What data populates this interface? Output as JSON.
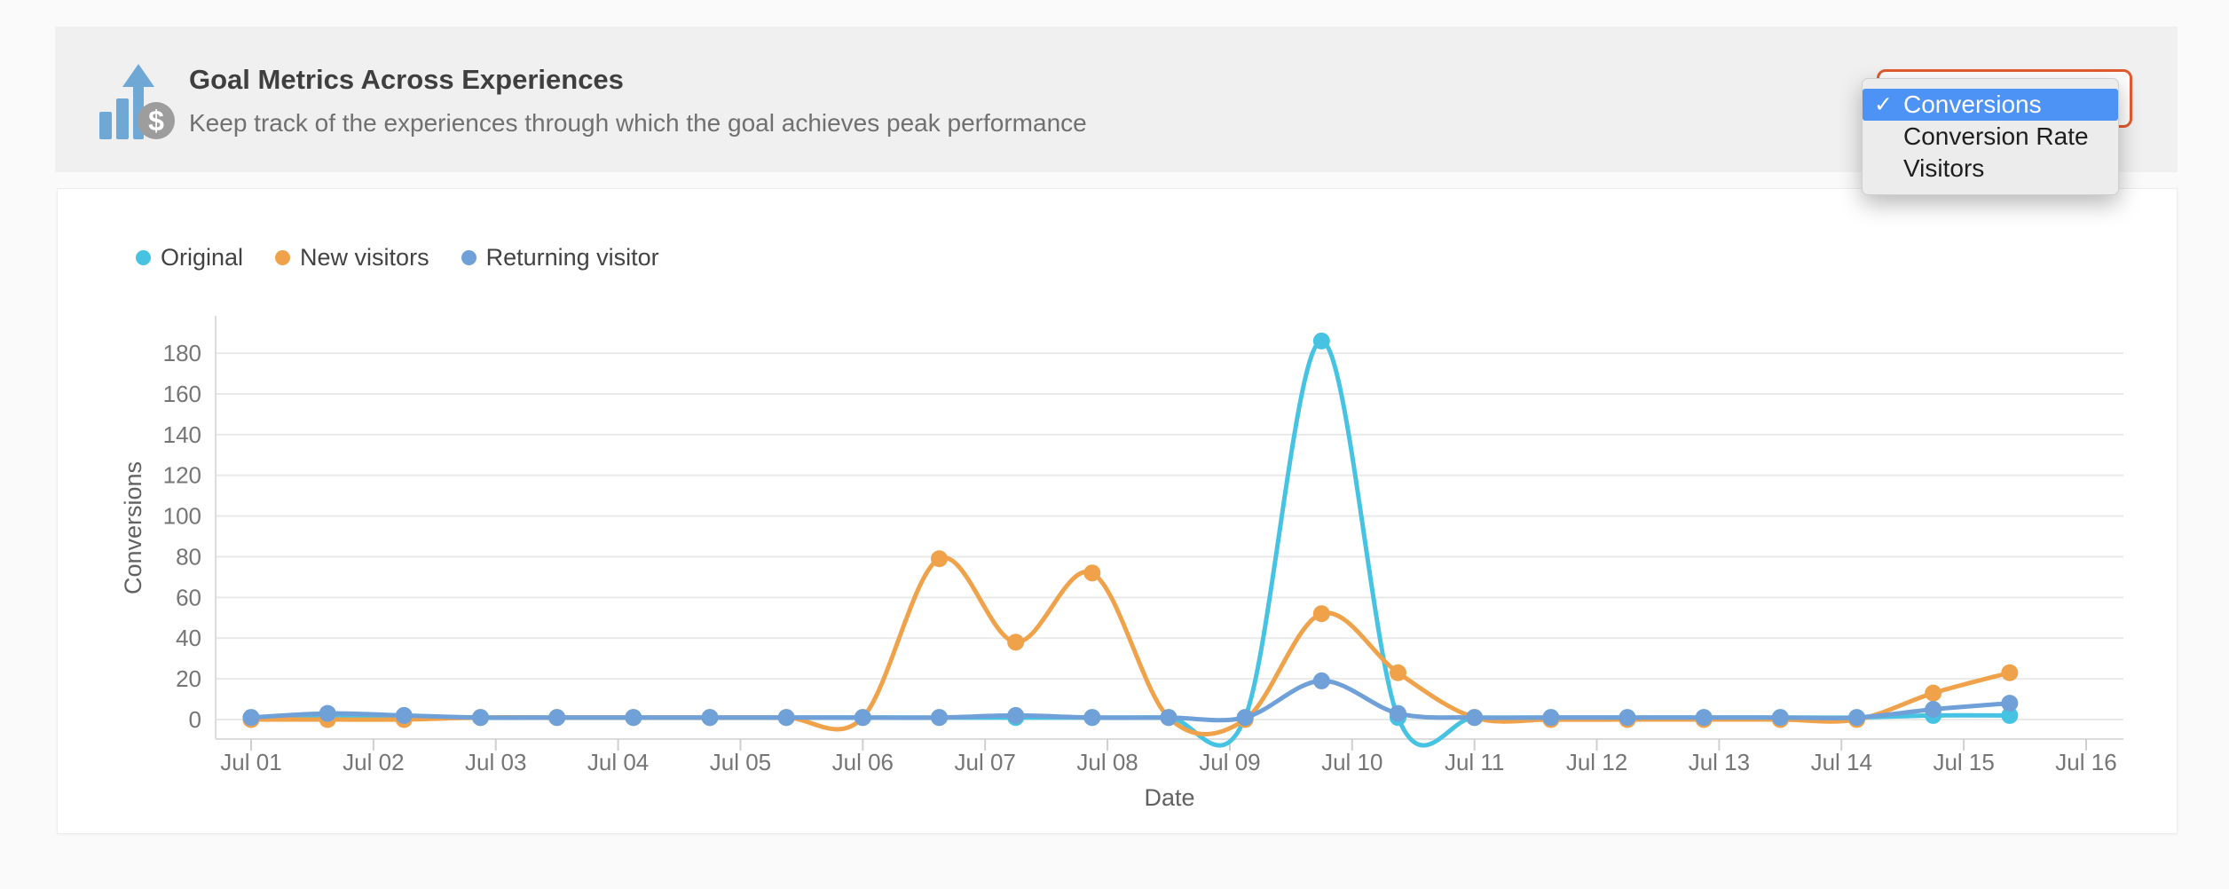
{
  "header": {
    "title": "Goal Metrics Across Experiences",
    "subtitle": "Keep track of the experiences through which the goal achieves peak performance",
    "icon": "bar-chart-up-arrow-dollar-icon",
    "icon_glyph": "$",
    "icon_blue": "#6FA8D4",
    "icon_gray": "#9D9D9D"
  },
  "metric_dropdown": {
    "selected": "Conversions",
    "checkmark": "✓",
    "highlight_color": "#4D92F5",
    "select_border_color": "#E35A2F",
    "options": [
      {
        "label": "Conversions",
        "selected": true
      },
      {
        "label": "Conversion Rate",
        "selected": false
      },
      {
        "label": "Visitors",
        "selected": false
      }
    ]
  },
  "chart_data": {
    "type": "line",
    "title": "",
    "xlabel": "Date",
    "ylabel": "Conversions",
    "grid": true,
    "legend_position": "top-left",
    "ylim": [
      0,
      195
    ],
    "yticks": [
      0,
      20,
      40,
      60,
      80,
      100,
      120,
      140,
      160,
      180
    ],
    "x_tick_labels": [
      "Jul 01",
      "Jul 02",
      "Jul 03",
      "Jul 04",
      "Jul 05",
      "Jul 06",
      "Jul 07",
      "Jul 08",
      "Jul 09",
      "Jul 10",
      "Jul 11",
      "Jul 12",
      "Jul 13",
      "Jul 14",
      "Jul 15",
      "Jul 16"
    ],
    "point_interval_days": 0.625,
    "x_days": [
      0,
      0.625,
      1.25,
      1.875,
      2.5,
      3.125,
      3.75,
      4.375,
      5,
      5.625,
      6.25,
      6.875,
      7.5,
      8.125,
      8.75,
      9.375,
      10,
      10.625,
      11.25,
      11.875,
      12.5,
      13.125,
      13.75,
      14.375
    ],
    "series": [
      {
        "name": "Original",
        "color": "#46C3E2",
        "values": [
          1,
          1,
          1,
          1,
          1,
          1,
          1,
          1,
          1,
          1,
          1,
          1,
          1,
          1,
          186,
          1,
          1,
          1,
          1,
          1,
          1,
          1,
          2,
          2
        ]
      },
      {
        "name": "New visitors",
        "color": "#F0A24B",
        "values": [
          0,
          0,
          0,
          1,
          1,
          1,
          1,
          1,
          1,
          79,
          38,
          72,
          1,
          0,
          52,
          23,
          1,
          0,
          0,
          0,
          0,
          0,
          13,
          23
        ]
      },
      {
        "name": "Returning visitor",
        "color": "#6FA0D8",
        "values": [
          1,
          3,
          2,
          1,
          1,
          1,
          1,
          1,
          1,
          1,
          2,
          1,
          1,
          1,
          19,
          3,
          1,
          1,
          1,
          1,
          1,
          1,
          5,
          8
        ]
      }
    ],
    "grid_color": "#e9e9e9",
    "axis_color": "#dcdcdc",
    "tick_color": "#cfcfcf",
    "tick_label_color": "#757575",
    "axis_title_color": "#616161"
  }
}
